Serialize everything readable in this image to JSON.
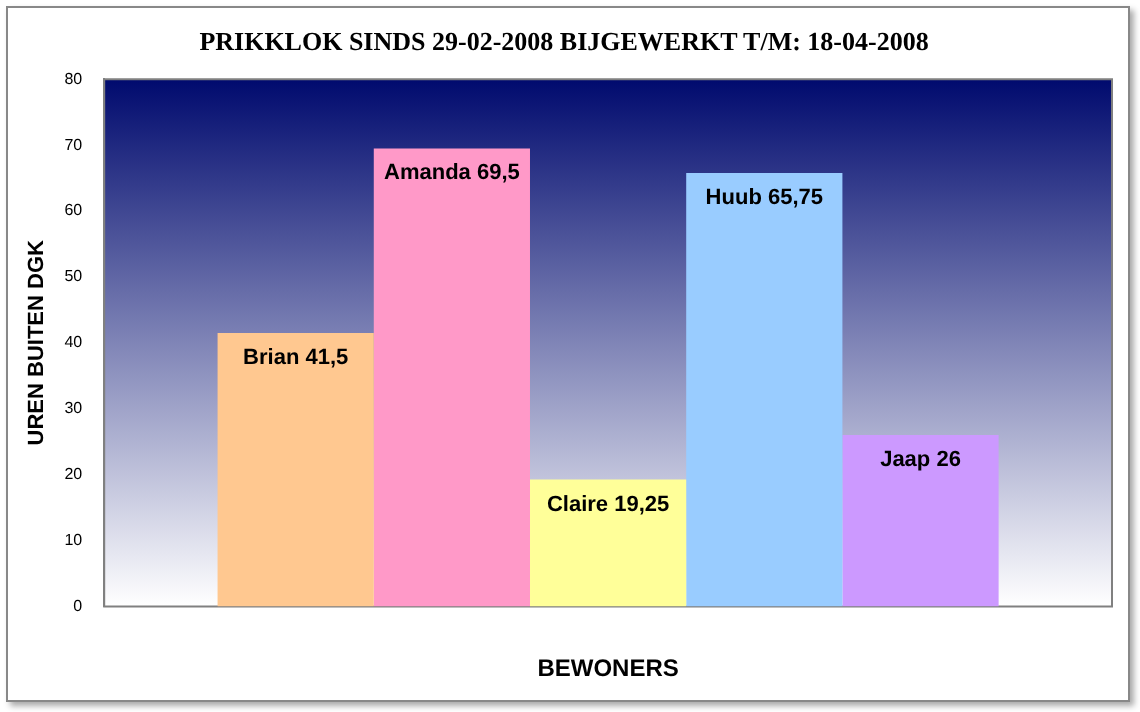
{
  "chart_data": {
    "type": "bar",
    "title": "PRIKKLOK SINDS 29-02-2008 BIJGEWERKT T/M: 18-04-2008",
    "xlabel": "BEWONERS",
    "ylabel": "UREN BUITEN DGK",
    "categories": [
      null
    ],
    "series": [
      {
        "name": "Brian",
        "color": "#ffc890",
        "values": [
          41.5
        ],
        "value_labels": [
          "41,5"
        ]
      },
      {
        "name": "Amanda",
        "color": "#ff99c8",
        "values": [
          69.5
        ],
        "value_labels": [
          "69,5"
        ]
      },
      {
        "name": "Claire",
        "color": "#ffff99",
        "values": [
          19.25
        ],
        "value_labels": [
          "19,25"
        ]
      },
      {
        "name": "Huub",
        "color": "#99ccff",
        "values": [
          65.75
        ],
        "value_labels": [
          "65,75"
        ]
      },
      {
        "name": "Jaap",
        "color": "#cc99ff",
        "values": [
          26
        ],
        "value_labels": [
          "26"
        ]
      }
    ],
    "ylim": [
      0,
      80
    ],
    "yticks": [
      0,
      10,
      20,
      30,
      40,
      50,
      60,
      70,
      80
    ],
    "grid": false,
    "legend": false
  }
}
